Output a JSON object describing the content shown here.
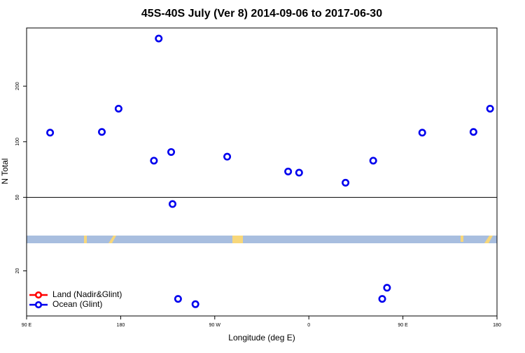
{
  "chart_data": {
    "type": "scatter",
    "title": "45S-40S July (Ver 8)   2014-09-06 to 2017-06-30",
    "x_label": "Longitude (deg E)",
    "y_label": "N Total",
    "xlim": [
      90,
      540
    ],
    "xticks": [
      {
        "value": 90,
        "label": "90 E"
      },
      180,
      {
        "value": 270,
        "label": "90 W"
      },
      {
        "value": 360,
        "label": "0"
      },
      {
        "value": 450,
        "label": "90 E"
      },
      {
        "value": 540,
        "label": "180"
      }
    ],
    "ylim": [
      11.4,
      413
    ],
    "yticks": [
      20,
      50,
      100,
      200
    ],
    "log_y": true,
    "reference_line": 50,
    "legend": "lower left",
    "series": [
      {
        "name": "Land (Nadir&Glint)",
        "color": "#ff0000",
        "x": [],
        "values": []
      },
      {
        "name": "Ocean (Glint)",
        "color": "#0000ee",
        "x": [
          112.5,
          162,
          178,
          216.4,
          211.8,
          228.3,
          229.6,
          234.9,
          251.5,
          281.9,
          340.2,
          350.7,
          395.1,
          421.6,
          430.2,
          434.8,
          468.5,
          517.5,
          533.4
        ],
        "values": [
          112,
          113,
          151,
          362,
          79,
          88,
          46,
          14.1,
          13.2,
          83,
          69,
          68,
          60,
          79,
          14.1,
          16.2,
          112,
          113,
          151
        ]
      }
    ]
  }
}
